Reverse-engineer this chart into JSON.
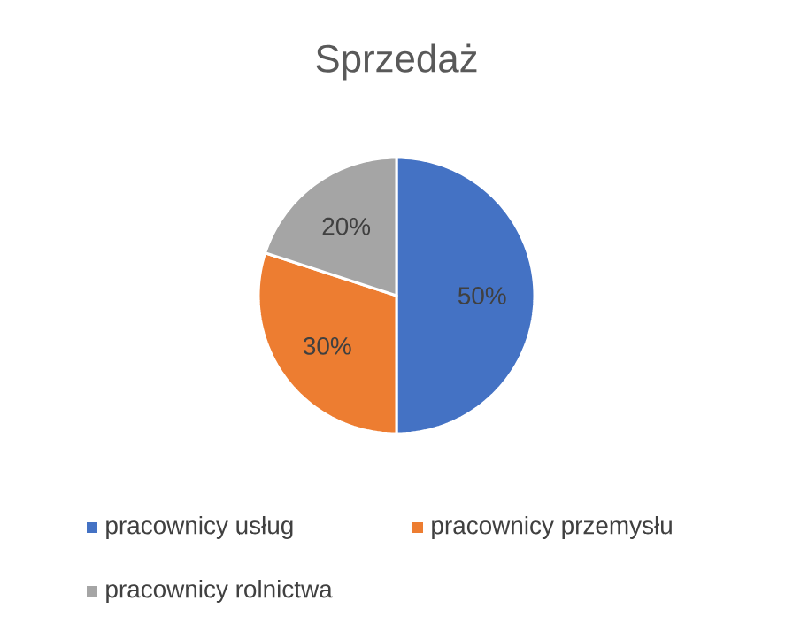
{
  "chart_data": {
    "type": "pie",
    "title": "Sprzedaż",
    "categories": [
      "pracownicy usług",
      "pracownicy przemysłu",
      "pracownicy rolnictwa"
    ],
    "values": [
      50,
      30,
      20
    ],
    "colors": [
      "#4472c4",
      "#ed7d31",
      "#a5a5a5"
    ],
    "value_labels": [
      "50%",
      "30%",
      "20%"
    ],
    "legend": "bottom"
  }
}
